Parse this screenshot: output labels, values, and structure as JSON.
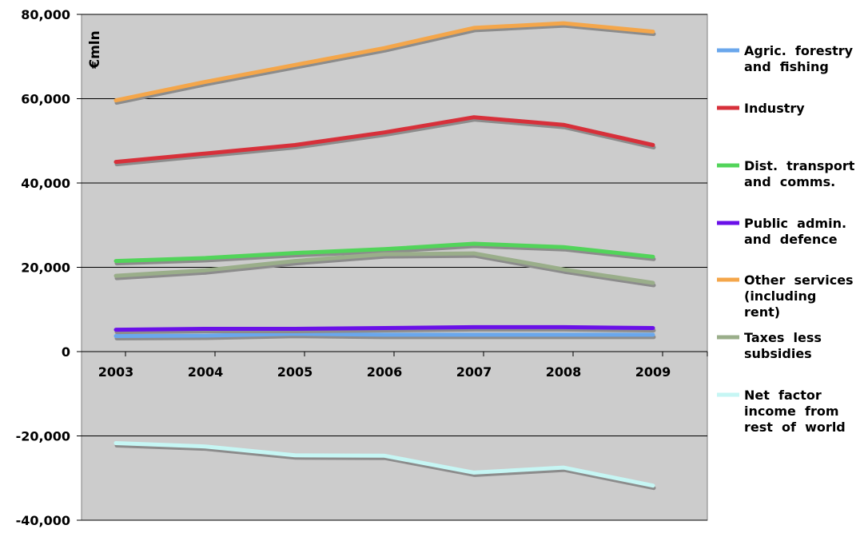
{
  "chart_data": {
    "type": "line",
    "title": "",
    "xlabel": "",
    "ylabel": "€mln",
    "ylim": [
      -40000,
      80000
    ],
    "yticks": [
      80000,
      60000,
      40000,
      20000,
      0,
      -20000,
      -40000
    ],
    "ytick_labels": [
      "80,000",
      "60,000",
      "40,000",
      "20,000",
      "0",
      "-20,000",
      "-40,000"
    ],
    "categories": [
      "2003",
      "2004",
      "2005",
      "2006",
      "2007",
      "2008",
      "2009"
    ],
    "legend_position": "right",
    "series": [
      {
        "name": "Agric. forestry and fishing",
        "legend_lines": [
          "Agric.  forestry",
          "and  fishing"
        ],
        "color": "#6aa7ec",
        "values": [
          3700,
          3800,
          4200,
          4000,
          4000,
          4000,
          4000
        ]
      },
      {
        "name": "Industry",
        "legend_lines": [
          "Industry"
        ],
        "color": "#d7303a",
        "values": [
          45000,
          47000,
          49000,
          52000,
          55600,
          53800,
          49000
        ]
      },
      {
        "name": "Dist. transport and comms.",
        "legend_lines": [
          "Dist.  transport",
          "and  comms."
        ],
        "color": "#52d45a",
        "values": [
          21500,
          22200,
          23400,
          24300,
          25600,
          24800,
          22500
        ]
      },
      {
        "name": "Public admin. and defence",
        "legend_lines": [
          "Public  admin.",
          "and  defence"
        ],
        "color": "#6a10e8",
        "values": [
          5200,
          5400,
          5400,
          5600,
          5800,
          5800,
          5600
        ]
      },
      {
        "name": "Other services (including rent)",
        "legend_lines": [
          "Other  services",
          "(including",
          "rent)"
        ],
        "color": "#f4a64a",
        "values": [
          59600,
          64000,
          68000,
          72000,
          76800,
          77900,
          75900
        ]
      },
      {
        "name": "Taxes less subsidies",
        "legend_lines": [
          "Taxes  less",
          "subsidies"
        ],
        "color": "#9aae8a",
        "values": [
          18000,
          19300,
          21500,
          23100,
          23300,
          19500,
          16300
        ]
      },
      {
        "name": "Net factor income from rest of world",
        "legend_lines": [
          "Net  factor",
          "income  from",
          "rest  of  world"
        ],
        "color": "#c6f6f4",
        "values": [
          -21700,
          -22500,
          -24600,
          -24700,
          -28700,
          -27500,
          -31800
        ]
      }
    ]
  }
}
